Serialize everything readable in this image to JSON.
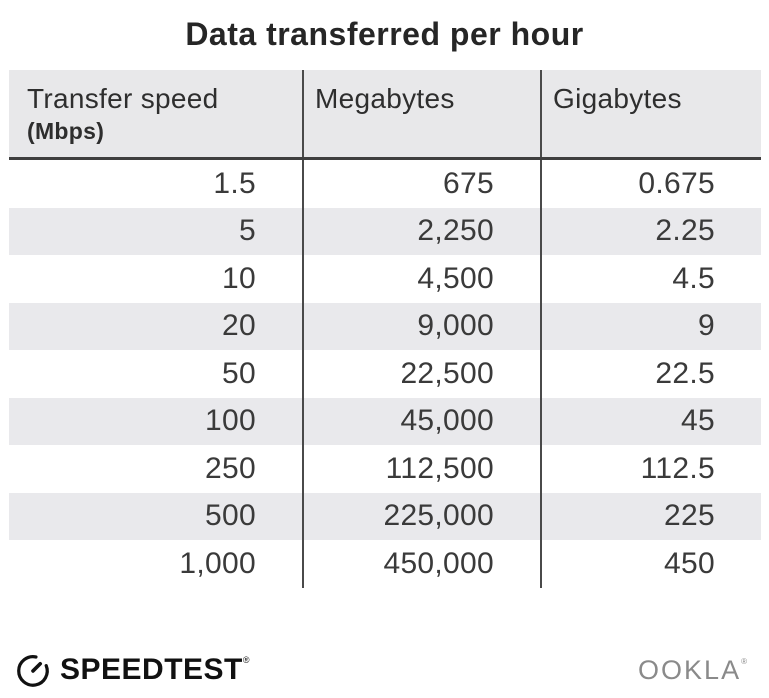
{
  "title": "Data transferred per hour",
  "table": {
    "columns": [
      {
        "label": "Transfer speed",
        "sublabel": "(Mbps)"
      },
      {
        "label": "Megabytes",
        "sublabel": ""
      },
      {
        "label": "Gigabytes",
        "sublabel": ""
      }
    ],
    "rows": [
      [
        "1.5",
        "675",
        "0.675"
      ],
      [
        "5",
        "2,250",
        "2.25"
      ],
      [
        "10",
        "4,500",
        "4.5"
      ],
      [
        "20",
        "9,000",
        "9"
      ],
      [
        "50",
        "22,500",
        "22.5"
      ],
      [
        "100",
        "45,000",
        "45"
      ],
      [
        "250",
        "112,500",
        "112.5"
      ],
      [
        "500",
        "225,000",
        "225"
      ],
      [
        "1,000",
        "450,000",
        "450"
      ]
    ]
  },
  "footer": {
    "speedtest_label": "SPEEDTEST",
    "speedtest_trademark": "®",
    "ookla_label": "OOKLA",
    "ookla_trademark": "®"
  },
  "colors": {
    "header_bg": "#e8e8ea",
    "stripe_bg": "#e9e9ec",
    "divider": "#4a4a4a",
    "header_border": "#3f3f3f",
    "title_text": "#262626",
    "header_text": "#2e2e2e",
    "data_text": "#3a3a3a",
    "logo_black": "#111111",
    "ookla_gray": "#8a8a8a"
  },
  "chart_data": {
    "type": "table",
    "title": "Data transferred per hour",
    "columns": [
      "Transfer speed (Mbps)",
      "Megabytes",
      "Gigabytes"
    ],
    "rows": [
      [
        1.5,
        675,
        0.675
      ],
      [
        5,
        2250,
        2.25
      ],
      [
        10,
        4500,
        4.5
      ],
      [
        20,
        9000,
        9
      ],
      [
        50,
        22500,
        22.5
      ],
      [
        100,
        45000,
        45
      ],
      [
        250,
        112500,
        112.5
      ],
      [
        500,
        225000,
        225
      ],
      [
        1000,
        450000,
        450
      ]
    ]
  }
}
